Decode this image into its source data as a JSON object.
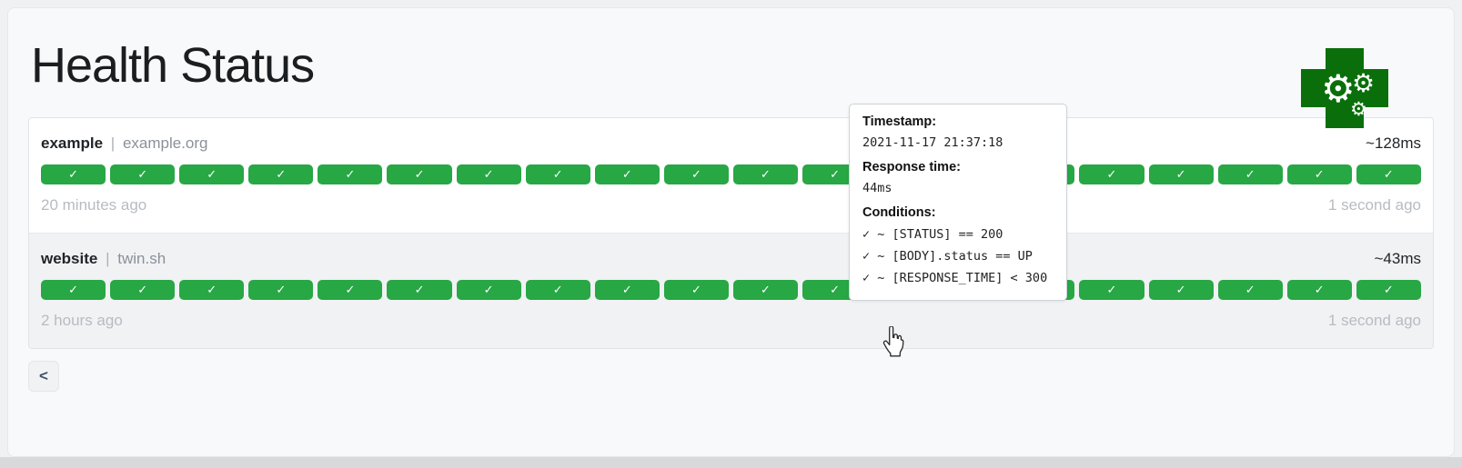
{
  "page": {
    "title": "Health Status"
  },
  "logo": {
    "name": "health-cross-with-gears",
    "cross_color": "#0a6f0a",
    "gear_glyph": "⚙"
  },
  "icons": {
    "check_glyph": "✓"
  },
  "colors": {
    "success": "#28a745",
    "success_hovered": "#8ccf9b",
    "card_background": "#f8f9fa",
    "muted_text": "#b7bcc2"
  },
  "services": [
    {
      "name": "example",
      "separator": "|",
      "host": "example.org",
      "avg_response_time": "~128ms",
      "oldest": "20 minutes ago",
      "newest": "1 second ago",
      "hovered_index": null,
      "results": [
        "success",
        "success",
        "success",
        "success",
        "success",
        "success",
        "success",
        "success",
        "success",
        "success",
        "success",
        "success",
        "success",
        "success",
        "success",
        "success",
        "success",
        "success",
        "success",
        "success"
      ]
    },
    {
      "name": "website",
      "separator": "|",
      "host": "twin.sh",
      "avg_response_time": "~43ms",
      "oldest": "2 hours ago",
      "newest": "1 second ago",
      "hovered_index": 12,
      "results": [
        "success",
        "success",
        "success",
        "success",
        "success",
        "success",
        "success",
        "success",
        "success",
        "success",
        "success",
        "success",
        "success",
        "success",
        "success",
        "success",
        "success",
        "success",
        "success",
        "success"
      ]
    }
  ],
  "tooltip": {
    "timestamp_label": "Timestamp:",
    "timestamp": "2021-11-17 21:37:18",
    "response_time_label": "Response time:",
    "response_time": "44ms",
    "conditions_label": "Conditions:",
    "conditions": [
      "✓ ~ [STATUS] == 200",
      "✓ ~ [BODY].status == UP",
      "✓ ~ [RESPONSE_TIME] < 300"
    ]
  },
  "pagination": {
    "prev_label": "<"
  }
}
